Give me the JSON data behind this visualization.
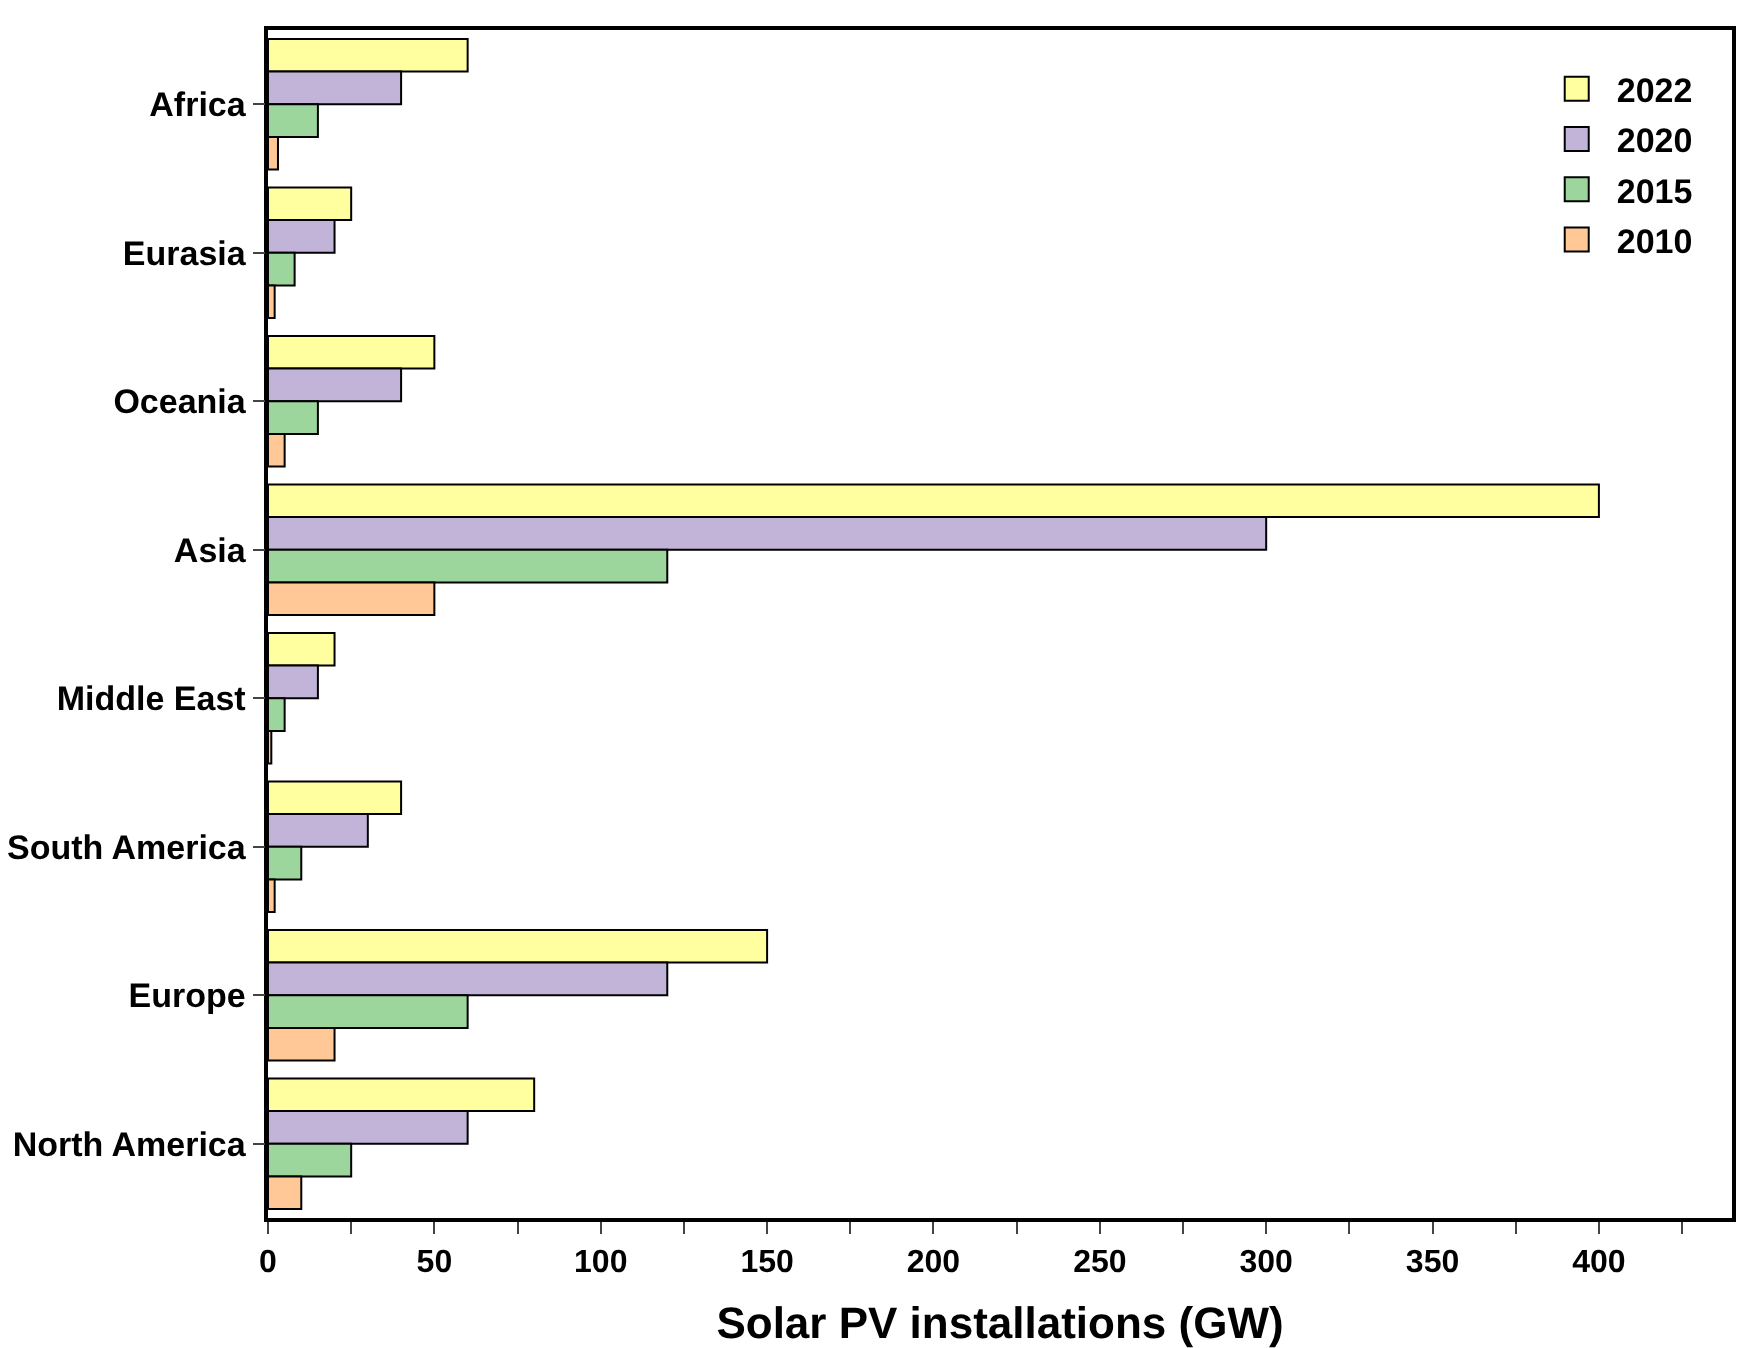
{
  "chart_data": {
    "type": "bar",
    "orientation": "horizontal",
    "xlabel": "Solar PV installations (GW)",
    "categories": [
      "Africa",
      "Eurasia",
      "Oceania",
      "Asia",
      "Middle East",
      "South America",
      "Europe",
      "North America"
    ],
    "series": [
      {
        "name": "2022",
        "color": "#ffffa0",
        "values": [
          60,
          25,
          50,
          400,
          20,
          40,
          150,
          80
        ]
      },
      {
        "name": "2020",
        "color": "#c2b4d9",
        "values": [
          40,
          20,
          40,
          300,
          15,
          30,
          120,
          60
        ]
      },
      {
        "name": "2015",
        "color": "#9cd69c",
        "values": [
          15,
          8,
          15,
          120,
          5,
          10,
          60,
          25
        ]
      },
      {
        "name": "2010",
        "color": "#ffc896",
        "values": [
          3,
          2,
          5,
          50,
          1,
          2,
          20,
          10
        ]
      }
    ],
    "xlim": [
      0,
      440
    ],
    "xticks": [
      0,
      {
        "value": 25,
        "label": null
      },
      50,
      {
        "value": 75,
        "label": null
      },
      100,
      {
        "value": 125,
        "label": null
      },
      150,
      {
        "value": 175,
        "label": null
      },
      200,
      {
        "value": 225,
        "label": null
      },
      250,
      {
        "value": 275,
        "label": null
      },
      300,
      {
        "value": 325,
        "label": null
      },
      350,
      {
        "value": 375,
        "label": null
      },
      400,
      {
        "value": 425,
        "label": null
      }
    ],
    "legend": "top right"
  }
}
